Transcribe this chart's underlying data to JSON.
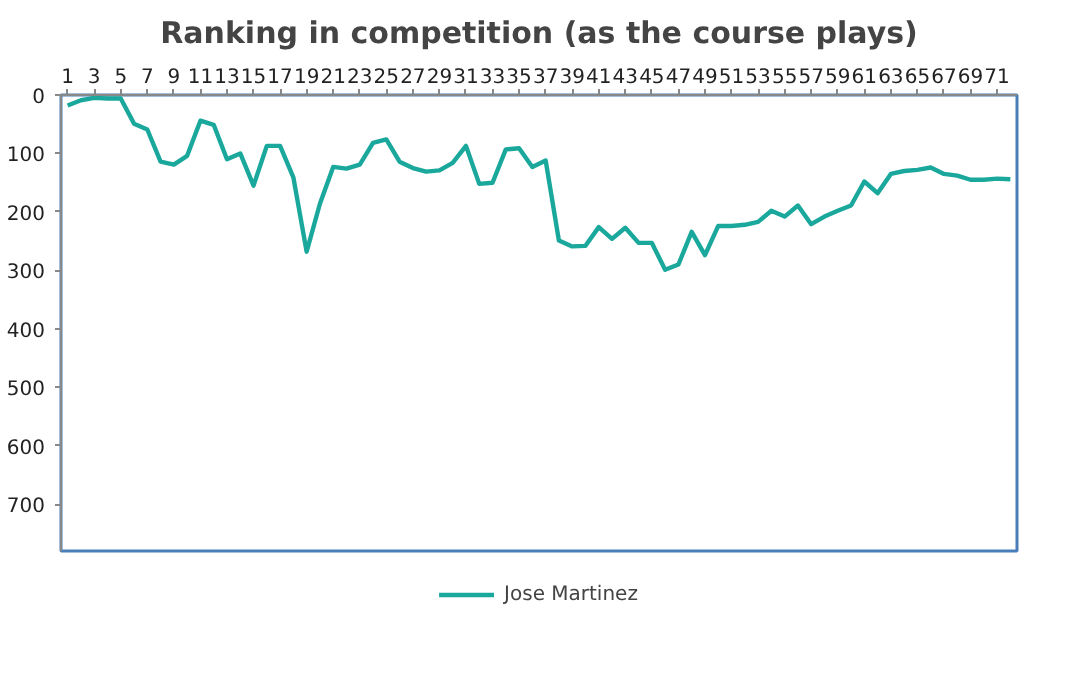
{
  "chart_data": {
    "type": "line",
    "title": "Ranking in competition (as the course plays)",
    "x": [
      1,
      2,
      3,
      4,
      5,
      6,
      7,
      8,
      9,
      10,
      11,
      12,
      13,
      14,
      15,
      16,
      17,
      18,
      19,
      20,
      21,
      22,
      23,
      24,
      25,
      26,
      27,
      28,
      29,
      30,
      31,
      32,
      33,
      34,
      35,
      36,
      37,
      38,
      39,
      40,
      41,
      42,
      43,
      44,
      45,
      46,
      47,
      48,
      49,
      50,
      51,
      52,
      53,
      54,
      55,
      56,
      57,
      58,
      59,
      60,
      61,
      62,
      63,
      64,
      65,
      66,
      67,
      68,
      69,
      70,
      71,
      72
    ],
    "series": [
      {
        "name": "Jose Martinez",
        "color": "#1aa89c",
        "values": [
          18,
          9,
          5,
          6,
          6,
          49,
          59,
          114,
          119,
          104,
          44,
          51,
          110,
          100,
          155,
          87,
          87,
          141,
          268,
          186,
          123,
          126,
          119,
          82,
          76,
          114,
          125,
          131,
          129,
          116,
          87,
          152,
          150,
          93,
          91,
          123,
          112,
          249,
          259,
          258,
          226,
          246,
          227,
          253,
          253,
          299,
          290,
          234,
          274,
          224,
          224,
          222,
          217,
          198,
          208,
          189,
          221,
          208,
          198,
          189,
          148,
          168,
          135,
          130,
          128,
          124,
          135,
          138,
          145,
          145,
          143,
          144
        ]
      }
    ],
    "xlim": [
      0.5,
      72.5
    ],
    "xticks": [
      1,
      3,
      5,
      7,
      9,
      11,
      13,
      15,
      17,
      19,
      21,
      23,
      25,
      27,
      29,
      31,
      33,
      35,
      37,
      39,
      41,
      43,
      45,
      47,
      49,
      51,
      53,
      55,
      57,
      59,
      61,
      63,
      65,
      67,
      69,
      71
    ],
    "ylim": [
      780,
      0
    ],
    "yticks": [
      0,
      100,
      200,
      300,
      400,
      500,
      600,
      700
    ],
    "grid": false,
    "legend": "bottom",
    "marker": "none",
    "line_style": "solid"
  }
}
